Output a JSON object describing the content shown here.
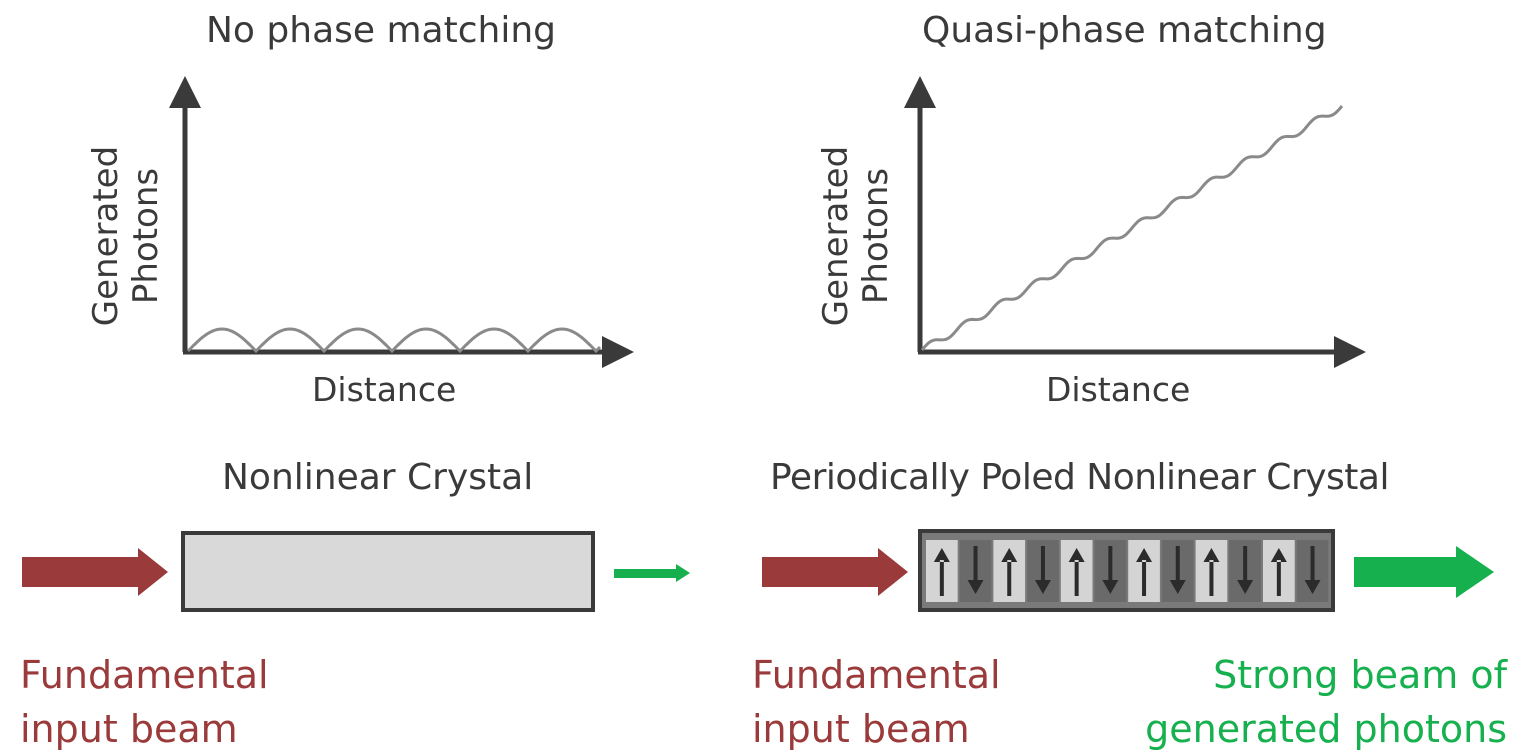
{
  "left_panel": {
    "title": "No phase matching",
    "ylabel_line1": "Generated",
    "ylabel_line2": "Photons",
    "xlabel": "Distance",
    "crystal_label": "Nonlinear Crystal",
    "input_beam_line1": "Fundamental",
    "input_beam_line2": "input beam"
  },
  "right_panel": {
    "title": "Quasi-phase matching",
    "ylabel_line1": "Generated",
    "ylabel_line2": "Photons",
    "xlabel": "Distance",
    "crystal_label": "Periodically Poled Nonlinear Crystal",
    "input_beam_line1": "Fundamental",
    "input_beam_line2": "input beam",
    "output_beam_line1": "Strong beam of",
    "output_beam_line2": "generated photons"
  },
  "colors": {
    "input_beam": "#9b3a3a",
    "output_beam": "#16b04e",
    "axis": "#3a3a3a",
    "curve": "#8a8a8a",
    "crystal_fill": "#d9d9d9",
    "domain_dark": "#6a6a6a",
    "domain_light": "#d4d4d4"
  },
  "poled_domains": [
    "up",
    "down",
    "up",
    "down",
    "up",
    "down",
    "up",
    "down",
    "up",
    "down",
    "up",
    "down"
  ]
}
